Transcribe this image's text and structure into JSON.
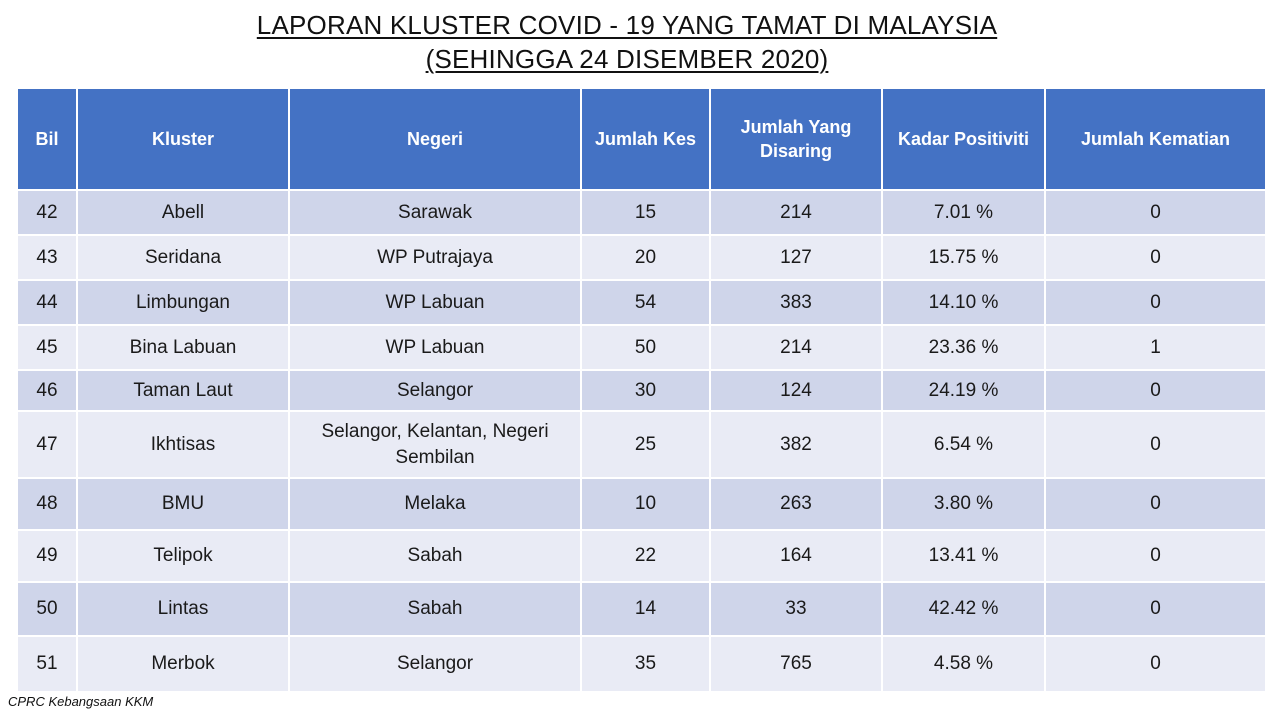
{
  "title": {
    "line1": "LAPORAN KLUSTER COVID - 19 YANG TAMAT DI MALAYSIA",
    "line2": "(SEHINGGA 24 DISEMBER 2020)"
  },
  "table": {
    "headers": {
      "bil": "Bil",
      "kluster": "Kluster",
      "negeri": "Negeri",
      "jumlah_kes": "Jumlah Kes",
      "jumlah_disaring": "Jumlah Yang Disaring",
      "kadar_positiviti": "Kadar Positiviti",
      "jumlah_kematian": "Jumlah Kematian"
    },
    "rows": [
      {
        "bil": "42",
        "kluster": "Abell",
        "negeri": "Sarawak",
        "kes": "15",
        "disaring": "214",
        "positiviti": "7.01 %",
        "kematian": "0"
      },
      {
        "bil": "43",
        "kluster": "Seridana",
        "negeri": "WP Putrajaya",
        "kes": "20",
        "disaring": "127",
        "positiviti": "15.75 %",
        "kematian": "0"
      },
      {
        "bil": "44",
        "kluster": "Limbungan",
        "negeri": "WP Labuan",
        "kes": "54",
        "disaring": "383",
        "positiviti": "14.10 %",
        "kematian": "0"
      },
      {
        "bil": "45",
        "kluster": "Bina Labuan",
        "negeri": "WP Labuan",
        "kes": "50",
        "disaring": "214",
        "positiviti": "23.36 %",
        "kematian": "1"
      },
      {
        "bil": "46",
        "kluster": "Taman Laut",
        "negeri": "Selangor",
        "kes": "30",
        "disaring": "124",
        "positiviti": "24.19 %",
        "kematian": "0"
      },
      {
        "bil": "47",
        "kluster": "Ikhtisas",
        "negeri": "Selangor, Kelantan, Negeri Sembilan",
        "kes": "25",
        "disaring": "382",
        "positiviti": "6.54 %",
        "kematian": "0"
      },
      {
        "bil": "48",
        "kluster": "BMU",
        "negeri": "Melaka",
        "kes": "10",
        "disaring": "263",
        "positiviti": "3.80 %",
        "kematian": "0"
      },
      {
        "bil": "49",
        "kluster": "Telipok",
        "negeri": "Sabah",
        "kes": "22",
        "disaring": "164",
        "positiviti": "13.41 %",
        "kematian": "0"
      },
      {
        "bil": "50",
        "kluster": "Lintas",
        "negeri": "Sabah",
        "kes": "14",
        "disaring": "33",
        "positiviti": "42.42 %",
        "kematian": "0"
      },
      {
        "bil": "51",
        "kluster": "Merbok",
        "negeri": "Selangor",
        "kes": "35",
        "disaring": "765",
        "positiviti": "4.58 %",
        "kematian": "0"
      }
    ]
  },
  "source": "CPRC Kebangsaan KKM",
  "colors": {
    "header_bg": "#4472c4",
    "row_odd": "#cfd5ea",
    "row_even": "#e9ebf5"
  }
}
